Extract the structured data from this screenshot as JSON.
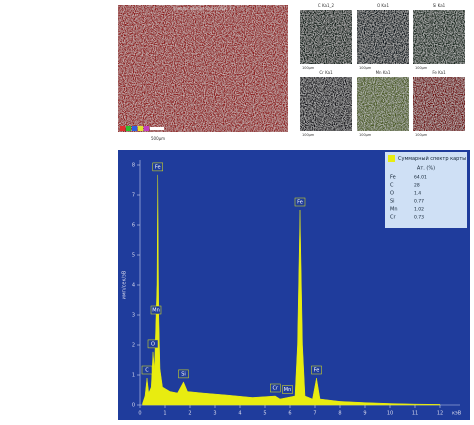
{
  "maps": {
    "main": {
      "title": "Многослойная карта ЭДС 1",
      "scale": "500µm",
      "color": "#8e1c1c"
    },
    "tiles": [
      {
        "label": "C Ka1_2",
        "color": "#0d1a12",
        "scale": "100µm"
      },
      {
        "label": "O Ka1",
        "color": "#10181a",
        "scale": "100µm"
      },
      {
        "label": "Si Ka1",
        "color": "#13281a",
        "scale": "100µm"
      },
      {
        "label": "Cr Ka1",
        "color": "#14141a",
        "scale": "100µm"
      },
      {
        "label": "Mn Ka1",
        "color": "#4a5a20",
        "scale": "100µm"
      },
      {
        "label": "Fe Ka1",
        "color": "#6e0c10",
        "scale": "100µm"
      }
    ]
  },
  "chart_data": {
    "type": "area",
    "x_label": "кэВ",
    "y_label": "имп/сек/эВ",
    "x": [
      0.1,
      0.2,
      0.28,
      0.35,
      0.45,
      0.52,
      0.58,
      0.64,
      0.68,
      0.71,
      0.75,
      0.8,
      0.9,
      1.2,
      1.5,
      1.74,
      1.9,
      2.5,
      3.5,
      4.5,
      5.41,
      5.6,
      5.9,
      6.2,
      6.3,
      6.4,
      6.5,
      6.6,
      6.9,
      7.06,
      7.2,
      8,
      9,
      10,
      11,
      12
    ],
    "series": [
      {
        "name": "Суммарный спектр карты",
        "color": "#e8ec10",
        "values": [
          0.05,
          0.3,
          0.9,
          0.4,
          0.6,
          1.77,
          1.2,
          2.9,
          4,
          7.67,
          3,
          1.2,
          0.6,
          0.45,
          0.4,
          0.77,
          0.45,
          0.4,
          0.33,
          0.25,
          0.3,
          0.2,
          0.25,
          0.3,
          2,
          6.5,
          2,
          0.3,
          0.2,
          0.9,
          0.2,
          0.12,
          0.08,
          0.05,
          0.03,
          0.02
        ]
      }
    ],
    "xlim": [
      0,
      12
    ],
    "xticks": [
      0,
      1,
      2,
      3,
      4,
      5,
      6,
      7,
      8,
      9,
      10,
      11,
      12
    ],
    "ylim": [
      0,
      8
    ],
    "yticks": [
      0,
      1,
      2,
      3,
      4,
      5,
      6,
      7,
      8
    ],
    "annotations": [
      {
        "text": "C",
        "x": 0.28,
        "y": 0.9
      },
      {
        "text": "O",
        "x": 0.52,
        "y": 1.77
      },
      {
        "text": "Mn",
        "x": 0.64,
        "y": 2.9
      },
      {
        "text": "Fe",
        "x": 0.71,
        "y": 7.67
      },
      {
        "text": "Si",
        "x": 1.74,
        "y": 0.77
      },
      {
        "text": "Cr",
        "x": 5.41,
        "y": 0.3
      },
      {
        "text": "Mn",
        "x": 5.9,
        "y": 0.25
      },
      {
        "text": "Fe",
        "x": 6.4,
        "y": 6.5
      },
      {
        "text": "Fe",
        "x": 7.06,
        "y": 0.9
      }
    ],
    "table": {
      "header": "Ат. (%)",
      "rows": [
        [
          "Fe",
          "64.01"
        ],
        [
          "C",
          "28"
        ],
        [
          "O",
          "1.4"
        ],
        [
          "Si",
          "0.77"
        ],
        [
          "Mn",
          "1.02"
        ],
        [
          "Cr",
          "0.73"
        ]
      ]
    }
  }
}
